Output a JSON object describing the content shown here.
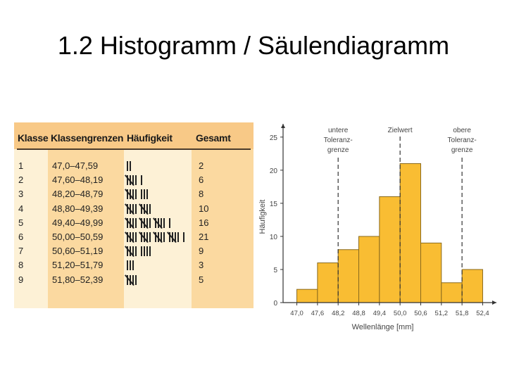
{
  "title": "1.2 Histogramm / Säulendiagramm",
  "table": {
    "headers": {
      "klasse": "Klasse",
      "grenzen": "Klassengrenzen",
      "haeufigkeit": "Häufigkeit",
      "gesamt": "Gesamt"
    },
    "rows": [
      {
        "klasse": "1",
        "grenzen": "47,0–47,59",
        "tally": 2,
        "gesamt": "2"
      },
      {
        "klasse": "2",
        "grenzen": "47,60–48,19",
        "tally": 6,
        "gesamt": "6"
      },
      {
        "klasse": "3",
        "grenzen": "48,20–48,79",
        "tally": 8,
        "gesamt": "8"
      },
      {
        "klasse": "4",
        "grenzen": "48,80–49,39",
        "tally": 10,
        "gesamt": "10"
      },
      {
        "klasse": "5",
        "grenzen": "49,40–49,99",
        "tally": 16,
        "gesamt": "16"
      },
      {
        "klasse": "6",
        "grenzen": "50,00–50,59",
        "tally": 21,
        "gesamt": "21"
      },
      {
        "klasse": "7",
        "grenzen": "50,60–51,19",
        "tally": 9,
        "gesamt": "9"
      },
      {
        "klasse": "8",
        "grenzen": "51,20–51,79",
        "tally": 3,
        "gesamt": "3"
      },
      {
        "klasse": "9",
        "grenzen": "51,80–52,39",
        "tally": 5,
        "gesamt": "5"
      }
    ]
  },
  "chart_data": {
    "type": "bar",
    "x_ticks": [
      "47,0",
      "47,6",
      "48,2",
      "48,8",
      "49,4",
      "50,0",
      "50,6",
      "51,2",
      "51,8",
      "52,4"
    ],
    "bin_edges": [
      47.0,
      47.6,
      48.2,
      48.8,
      49.4,
      50.0,
      50.6,
      51.2,
      51.8,
      52.4
    ],
    "values": [
      2,
      6,
      8,
      10,
      16,
      21,
      9,
      3,
      5
    ],
    "ylim": [
      0,
      27
    ],
    "yticks": [
      0,
      5,
      10,
      15,
      20,
      25
    ],
    "xlim": [
      46.6,
      52.8
    ],
    "xlabel": "Wellenlänge [mm]",
    "ylabel": "Häufigkeit",
    "grid": false,
    "bar_color": "#f9bd33",
    "bar_border": "#8a6a1e",
    "reference_lines": [
      {
        "x": 48.2,
        "label_lines": [
          "untere",
          "Toleranz-",
          "grenze"
        ]
      },
      {
        "x": 50.0,
        "label_lines": [
          "Zielwert"
        ]
      },
      {
        "x": 51.8,
        "label_lines": [
          "obere",
          "Toleranz-",
          "grenze"
        ]
      }
    ]
  }
}
